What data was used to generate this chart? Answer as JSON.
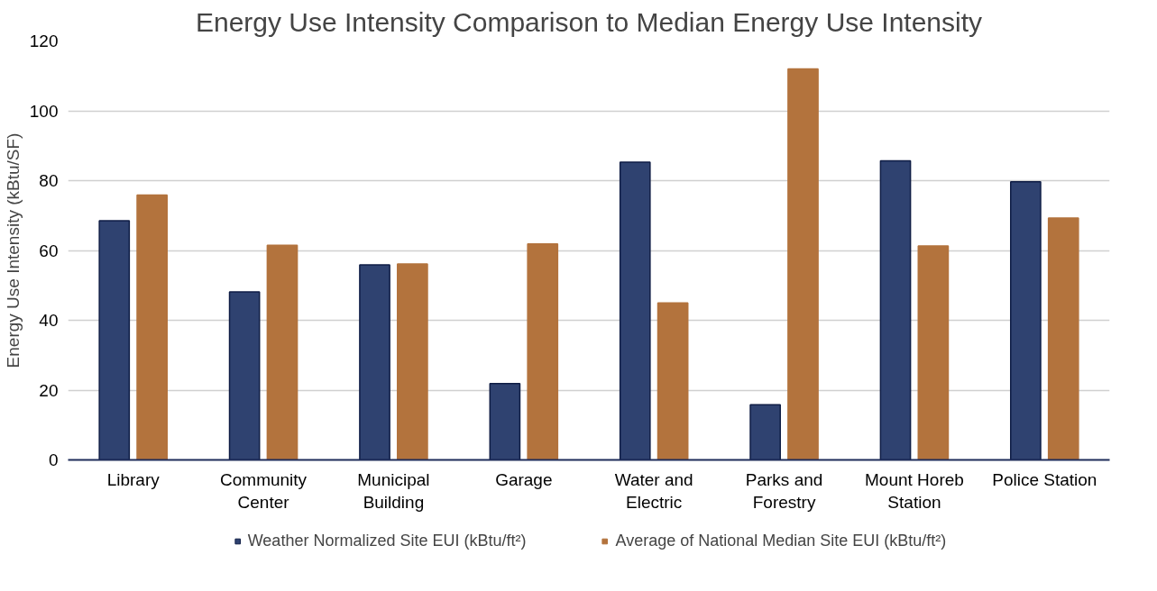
{
  "chart_data": {
    "type": "bar",
    "title": "Energy Use Intensity Comparison to Median Energy Use Intensity",
    "ylabel": "Energy Use Intensity (kBtu/SF)",
    "categories": [
      "Library",
      "Community Center",
      "Municipal Building",
      "Garage",
      "Water and Electric",
      "Parks and Forestry",
      "Mount Horeb Station",
      "Police Station"
    ],
    "series": [
      {
        "name": "Weather Normalized Site EUI (kBtu/ft²)",
        "color": "#2f4270",
        "values": [
          68.5,
          48.1,
          55.9,
          21.9,
          85.3,
          15.8,
          85.7,
          79.7
        ]
      },
      {
        "name": "Average of National Median Site EUI (kBtu/ft²)",
        "color": "#b3733d",
        "values": [
          75.9,
          61.5,
          56.1,
          61.9,
          45.0,
          112.0,
          61.3,
          69.3
        ]
      }
    ],
    "ylim": [
      0,
      120
    ],
    "yticks": [
      0,
      20,
      40,
      60,
      80,
      100,
      120
    ],
    "grid": "y",
    "legend": "bottom"
  }
}
